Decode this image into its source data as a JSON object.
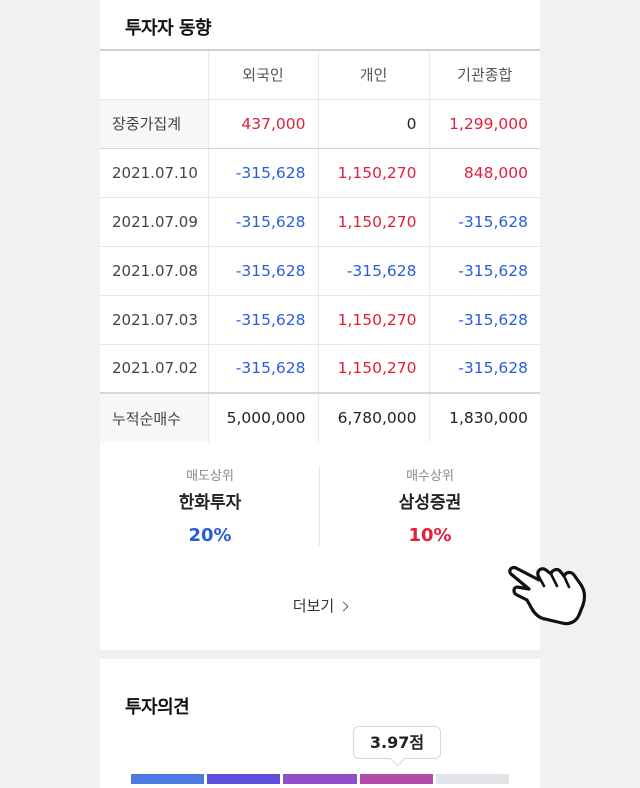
{
  "investor_trend": {
    "title": "투자자 동향",
    "columns": [
      "",
      "외국인",
      "개인",
      "기관종합"
    ],
    "rows": [
      {
        "label": "장중가집계",
        "values": [
          "437,000",
          "0",
          "1,299,000"
        ],
        "colors": [
          "red",
          "black",
          "red"
        ]
      },
      {
        "label": "2021.07.10",
        "values": [
          "-315,628",
          "1,150,270",
          "848,000"
        ],
        "colors": [
          "blue",
          "red",
          "red"
        ]
      },
      {
        "label": "2021.07.09",
        "values": [
          "-315,628",
          "1,150,270",
          "-315,628"
        ],
        "colors": [
          "blue",
          "red",
          "blue"
        ]
      },
      {
        "label": "2021.07.08",
        "values": [
          "-315,628",
          "-315,628",
          "-315,628"
        ],
        "colors": [
          "blue",
          "blue",
          "blue"
        ]
      },
      {
        "label": "2021.07.03",
        "values": [
          "-315,628",
          "1,150,270",
          "-315,628"
        ],
        "colors": [
          "blue",
          "red",
          "blue"
        ]
      },
      {
        "label": "2021.07.02",
        "values": [
          "-315,628",
          "1,150,270",
          "-315,628"
        ],
        "colors": [
          "blue",
          "red",
          "blue"
        ]
      },
      {
        "label": "누적순매수",
        "values": [
          "5,000,000",
          "6,780,000",
          "1,830,000"
        ],
        "colors": [
          "black",
          "black",
          "black"
        ]
      }
    ],
    "sell_top": {
      "caption": "매도상위",
      "name": "한화투자",
      "percent": "20%"
    },
    "buy_top": {
      "caption": "매수상위",
      "name": "삼성증권",
      "percent": "10%"
    },
    "more_label": "더보기"
  },
  "opinion": {
    "title": "투자의견",
    "score_label": "3.97점",
    "score_fraction": 0.8,
    "segment_colors": [
      "#4f7ae4",
      "#5d4fd8",
      "#8e4fc9",
      "#b04ba8",
      "#e3e4e7"
    ]
  },
  "colors": {
    "red": "#e0203a",
    "blue": "#2a5ed8",
    "black": "#222222"
  },
  "icons": {
    "more": "chevron-right-icon",
    "pointer": "pointing-hand-icon"
  }
}
